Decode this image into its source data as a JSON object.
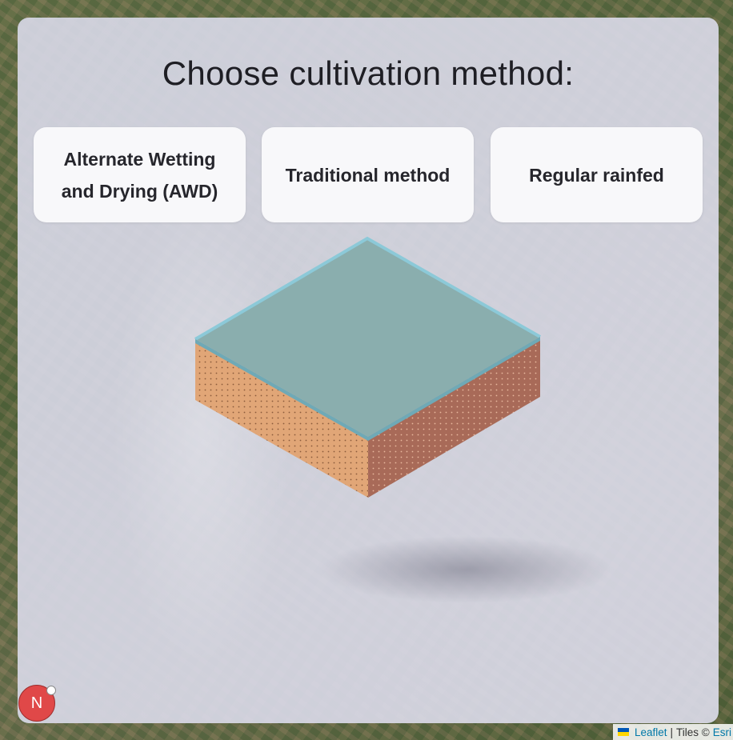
{
  "prompt": {
    "title": "Choose cultivation method:"
  },
  "options": [
    {
      "label": "Alternate Wetting and Drying (AWD)"
    },
    {
      "label": "Traditional method"
    },
    {
      "label": "Regular rainfed"
    }
  ],
  "compass": {
    "label": "N"
  },
  "attribution": {
    "leaflet_link": "Leaflet",
    "separator": "|",
    "tiles_text": "Tiles ©",
    "esri_link": "Esri"
  },
  "colors": {
    "water_top": "#8aaeae",
    "water_edge": "#8cc9d8",
    "soil_left": "#e1a677",
    "soil_right": "#a86a58",
    "compass": "#e04848",
    "link": "#0078a8"
  },
  "icons": [
    "ukraine-flag-icon",
    "compass-icon"
  ]
}
